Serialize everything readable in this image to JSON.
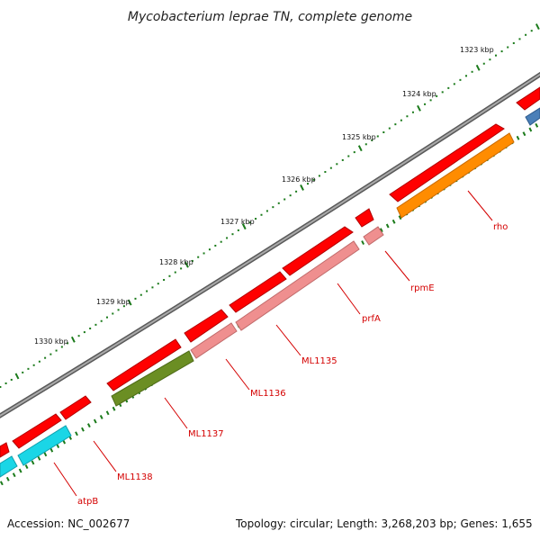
{
  "title": "Mycobacterium leprae TN, complete genome",
  "accession": "Accession: NC_002677",
  "topology": "Topology: circular; Length: 3,268,203 bp; Genes: 1,655",
  "ruler": {
    "labels": [
      "1323 kbp",
      "1324 kbp",
      "1325 kbp",
      "1326 kbp",
      "1327 kbp",
      "1328 kbp",
      "1329 kbp",
      "1330 kbp"
    ],
    "major_tick_color": "#1a7a1a",
    "minor_dot_color": "#1a7a1a"
  },
  "genes": [
    {
      "name": "rho",
      "color": "#ff8c00"
    },
    {
      "name": "rpmE",
      "color": "#ef8f8f"
    },
    {
      "name": "prfA",
      "color": "#ef8f8f"
    },
    {
      "name": "ML1135",
      "color": "#ef8f8f"
    },
    {
      "name": "ML1136",
      "color": "#ef8f8f"
    },
    {
      "name": "ML1137",
      "color": "#6b8e23"
    },
    {
      "name": "ML1138",
      "color": "#1ad6e6"
    },
    {
      "name": "atpB",
      "color": "#1ad6e6"
    }
  ],
  "colors": {
    "cds": "#ff0000",
    "backbone": "#808080",
    "label": "#d40000",
    "other_gene": "#4a7fb8"
  }
}
